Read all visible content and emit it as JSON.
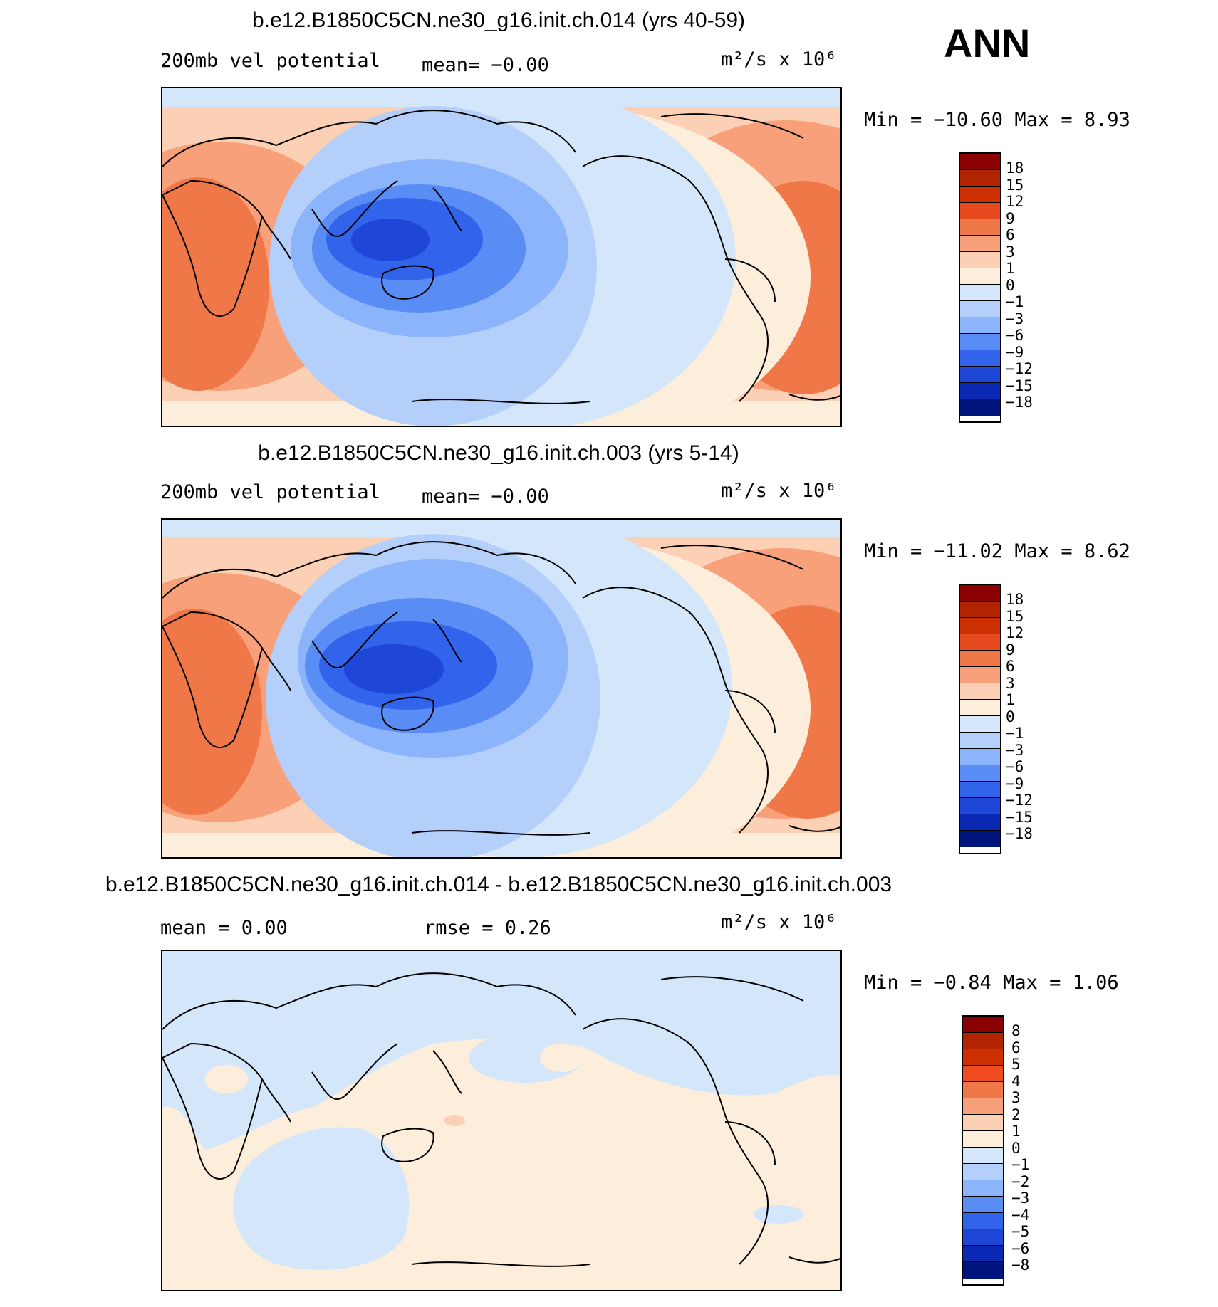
{
  "season": "ANN",
  "panels": [
    {
      "title": "b.e12.B1850C5CN.ne30_g16.init.ch.014 (yrs 40-59)",
      "left_label": "200mb vel potential",
      "center_label": "mean=  −0.00",
      "units": "m²/s x 10⁶",
      "minmax": "Min = −10.60 Max =   8.93"
    },
    {
      "title": "b.e12.B1850C5CN.ne30_g16.init.ch.003 (yrs 5-14)",
      "left_label": "200mb vel potential",
      "center_label": "mean=  −0.00",
      "units": "m²/s x 10⁶",
      "minmax": "Min = −11.02 Max =   8.62"
    },
    {
      "title": "b.e12.B1850C5CN.ne30_g16.init.ch.014 - b.e12.B1850C5CN.ne30_g16.init.ch.003",
      "left_label": "mean =   0.00",
      "center_label": "rmse =   0.26",
      "units": "m²/s x 10⁶",
      "minmax": "Min =  −0.84 Max =   1.06"
    }
  ],
  "colorbars": {
    "field": {
      "labels": [
        "18",
        "15",
        "12",
        "9",
        "6",
        "3",
        "1",
        "0",
        "−1",
        "−3",
        "−6",
        "−9",
        "−12",
        "−15",
        "−18"
      ],
      "colors": [
        "#8b0000",
        "#b22400",
        "#cc3000",
        "#e84a20",
        "#f07848",
        "#f8a07a",
        "#fcd0b4",
        "#fdeedc",
        "#d4e6fa",
        "#b4cffa",
        "#8cb4fa",
        "#5a8cf5",
        "#3264eb",
        "#1e46d7",
        "#0a28b4",
        "#00147d"
      ]
    },
    "diff": {
      "labels": [
        "8",
        "6",
        "5",
        "4",
        "3",
        "2",
        "1",
        "0",
        "−1",
        "−2",
        "−3",
        "−4",
        "−5",
        "−6",
        "−8"
      ],
      "colors": [
        "#8b0000",
        "#b22400",
        "#cc3000",
        "#f04a20",
        "#f07848",
        "#f8a07a",
        "#fcd0b4",
        "#fdeedc",
        "#d4e6fa",
        "#b4cffa",
        "#8cb4fa",
        "#5a8cf5",
        "#3264eb",
        "#1e46d7",
        "#0a28b4",
        "#00147d"
      ]
    }
  }
}
